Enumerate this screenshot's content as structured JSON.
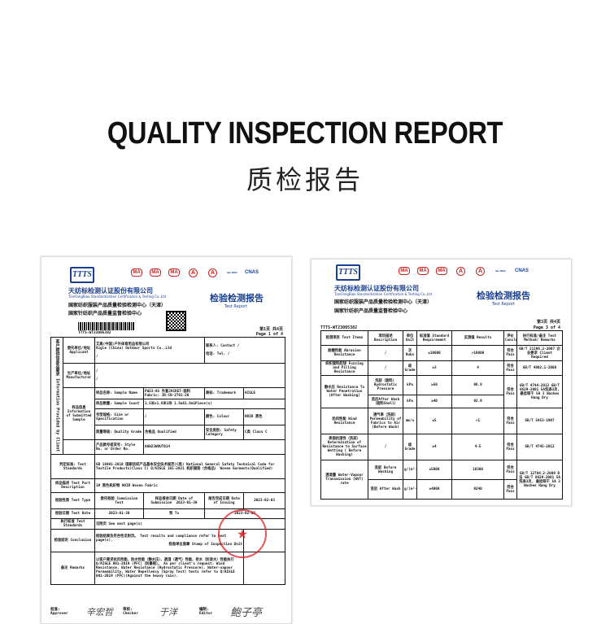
{
  "header": {
    "title": "QUALITY INSPECTION REPORT",
    "subtitle": "质检报告"
  },
  "org": {
    "logo": "TTTS",
    "name_cn": "天纺标检测认证股份有限公司",
    "name_en": "TianFangBiao Standardization Certification & Testing Co.,Ltd",
    "center1": "国家纺织服装产品质量检验检测中心（天津）",
    "center2": "国家针纺织产品质量监督检验中心",
    "report_cn": "检验检测报告",
    "report_en": "Test Report",
    "cert_marks": [
      "MA",
      "MA",
      "MA",
      "A",
      "A",
      "ilac-MRA",
      "CNAS"
    ]
  },
  "doc1": {
    "number": "TTTS-WT23005382",
    "page_cn": "第1页 共4页",
    "page_en": "Page 1 of 4",
    "side_label": "客户提供信息及要求 Information Provided by Client",
    "applicant_label": "委托单位/地址 Applicant",
    "applicant_cn": "艾高(中国)户外体育用品有限公司",
    "applicant_en": "Aigle (China) Outdoor Sports Co.,Ltd",
    "applicant_addr": "/",
    "contact_label": "联系人: Contact",
    "contact": "/",
    "tel_label": "电话: Tel.",
    "tel": "/",
    "manufacturer_label": "生产单位/地址 Manufacturer",
    "manufacturer": "/",
    "manufacturer_addr": "/",
    "sample_info_label": "样品信息 Information of Submitted Sample",
    "sample_name_label": "样品名称: Sample Name",
    "sample_name": "FW23-AS 外套JACKET-面料Fabric: JR-CN-2701-20",
    "trademark_label": "商标: Trademark",
    "trademark": "AIGLE",
    "sample_count_label": "样品数量: Sample Count",
    "sample_count": "1.5米x1.6米1块 1.5mX1.6m1Piece(s)",
    "size_label": "号型规格: Size or Specification",
    "size": "/",
    "colour_label": "颜色: Colour",
    "colour": "NOIR 黑色",
    "grade_label": "质量等级: Quality Grade",
    "grade": "合格品 Qualified",
    "safety_label": "安全类别: Safety Category",
    "safety": "C类 Class C",
    "style_label": "产品款号或货号: Style No. or Order No.",
    "style": "AAW23WOUT014",
    "std_label": "判定标准: Test Standards",
    "std": "GB 18401-2010 国家纺织产品基本安全技术规范(C类) National General Safety Technical Code for Textile Products(Class C) Q/AIGLE 101-2021 机织服装（合格品） Woven Garments(Qualified)",
    "part_label": "样品描述 Test Part Description",
    "part": "1# 黑色机织物 NOIR Woven Fabric",
    "type_label": "检验性质 Test Type",
    "type": "委托检验 Commission Test",
    "sub_label": "样品接收日期 Date of Submission",
    "sub_date": "2023-01-30",
    "issue_label": "报告完成日期 Date of Issuing",
    "issue_date": "2023-02-03",
    "date_label": "检验日期 Test Date",
    "date_from": "2023-01-30",
    "to_label": "到 To",
    "date_to": "2023-02-02",
    "exec_label": "执行标准 Test Standards",
    "exec": "见附页 See next page(s)",
    "concl_label": "检验结论 Conclusion",
    "concl": "检验结果及符合性见附页。 Test results and compliance refer to next page(s).",
    "stamp_label": "检验单位盖章 Stamp of Inspection Unit",
    "remarks_label": "备注 Remarks",
    "remarks": "以客户要求抗风性能、防水性能（静水压）、透湿（透气）性能、拒水（防泼水）性能执行 Q/AIGLE 001-2019 (PFC)（防暴雨）。 As per client's request: Wind Resistance, Water Resistance (Hydrostatic Pressure), Water-vapour Permeability, Water Repellency (Spray Test) tests refer to Q/AIGLE 001-2019 (PFC)(Against the heavy rain).",
    "approver_label": "批准: Approver",
    "checker_label": "审核: Checker",
    "editor_label": "编制: Editor",
    "approver_sig": "辛宏哲",
    "checker_sig": "于洋",
    "editor_sig": "鲍子亭"
  },
  "doc2": {
    "number": "TTTS-WT23005382",
    "page_cn": "第3页 共4页",
    "page_en": "Page 3 of 4",
    "columns": [
      "检测项目 Test Items",
      "项目描述 Description",
      "单位 Unit",
      "标准值 Standard Requirement",
      "实测值 Results",
      "评价 Conclusions",
      "执行标准/备注 Test Method/ Remarks"
    ],
    "rows": [
      {
        "item": "耐磨性能 Abrasion Resistance",
        "desc": "/",
        "unit": "次 Rubs",
        "std": "≥10000",
        "result": ">10000",
        "concl": "符合 Pass",
        "method": "GB/T 21196.2-2007 企业要求 Client Required"
      },
      {
        "item": "织织面料起球 Fuzzing and Pilling Resistance",
        "desc": "/",
        "unit": "级 Grade",
        "std": "≥3",
        "result": "4",
        "concl": "符合 Pass",
        "method": "GB/T 4802.1-2008"
      },
      {
        "item": "静水压 Resistance To Water Penetration (After Washing)",
        "desc": "洗前（面料） Hydrostatic Pressure",
        "unit": "kPa",
        "std": "≥50",
        "result": "96.8",
        "concl": "符合 Pass",
        "method": "GB/T 4744-2013 GB/T 8629-2001 5A洗涤3次, 悬挂晾干 5A 3 Washes Hang Dry"
      },
      {
        "item": "",
        "desc": "洗后After Wash （面料Shell）",
        "unit": "kPa",
        "std": "≥40",
        "result": "92.9",
        "concl": "",
        "method": ""
      },
      {
        "item": "防风性能 Wind Resistance",
        "desc": "透气率（洗前） Permeability of Fabrics to Air (Before Wash)",
        "unit": "mm/s",
        "std": "≤5",
        "result": "<1",
        "concl": "符合 Pass",
        "method": "GB/T 5453-1997"
      },
      {
        "item": "表面抗湿性（洗前） Determination of Resistance to Surface Wetting ( Before Washing)",
        "desc": "/",
        "unit": "级 Grade",
        "std": "≥4",
        "result": "4-5",
        "concl": "符合 Pass",
        "method": "GB/T 4745-2012"
      },
      {
        "item": "透湿量 Water-Vapour Transmission (WVT) rate",
        "desc": "洗前 Before Washing",
        "unit": "g/(m²·24h)",
        "std": "≥5000",
        "result": "10300",
        "concl": "符合 Pass",
        "method": "GB/T 12704.2-2009 B法 GB/T 8629-2001 5A洗涤3次, 悬挂晾干 5A 3 Washes Hang Dry"
      },
      {
        "item": "",
        "desc": "洗后 After Wash",
        "unit": "g/(m²·24h)",
        "std": "≥4000",
        "result": "9240",
        "concl": "符合 Pass",
        "method": ""
      }
    ]
  },
  "colors": {
    "brand_blue": "#1b3f8f",
    "stamp_red": "#dc1e1e"
  }
}
